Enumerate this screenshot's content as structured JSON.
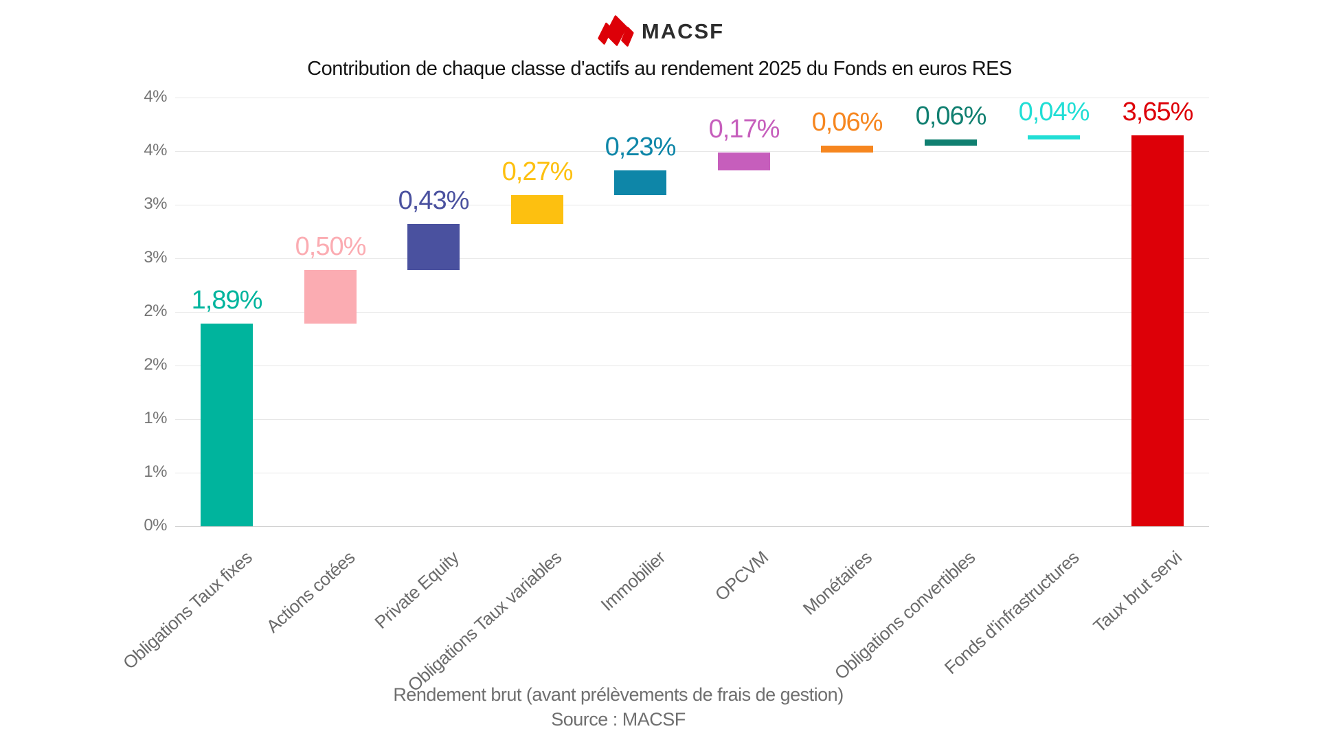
{
  "brand": {
    "name": "MACSF",
    "logo_color": "#dd0008",
    "text_color": "#2d2d2d"
  },
  "chart_data": {
    "type": "bar",
    "subtype": "waterfall",
    "title": "Contribution de chaque classe d'actifs au rendement 2025 du Fonds en euros RES",
    "xlabel": "Rendement brut (avant prélèvements de frais de gestion)",
    "source": "Source : MACSF",
    "categories": [
      "Obligations Taux fixes",
      "Actions cotées",
      "Private Equity",
      "Obligations Taux variables",
      "Immobilier",
      "OPCVM",
      "Monétaires",
      "Obligations convertibles",
      "Fonds d'infrastructures",
      "Taux brut servi"
    ],
    "values": [
      1.89,
      0.5,
      0.43,
      0.27,
      0.23,
      0.17,
      0.06,
      0.06,
      0.04,
      3.65
    ],
    "value_labels": [
      "1,89%",
      "0,50%",
      "0,43%",
      "0,27%",
      "0,23%",
      "0,17%",
      "0,06%",
      "0,06%",
      "0,04%",
      "3,65%"
    ],
    "cumulative_starts": [
      0,
      1.89,
      2.39,
      2.82,
      3.09,
      3.32,
      3.49,
      3.55,
      3.61,
      0
    ],
    "cumulative_ends": [
      1.89,
      2.39,
      2.82,
      3.09,
      3.32,
      3.49,
      3.55,
      3.61,
      3.65,
      3.65
    ],
    "colors": [
      "#00b49d",
      "#fbacb2",
      "#4a519f",
      "#fdc010",
      "#0e86a8",
      "#c65ebc",
      "#f6861f",
      "#107f70",
      "#21ded5",
      "#dd0008"
    ],
    "ylim": [
      0,
      4
    ],
    "ytick_step": 0.5,
    "ytick_labels_bottom_to_top": [
      "0%",
      "1%",
      "1%",
      "2%",
      "2%",
      "3%",
      "3%",
      "4%",
      "4%"
    ],
    "grid": true,
    "legend": false
  }
}
